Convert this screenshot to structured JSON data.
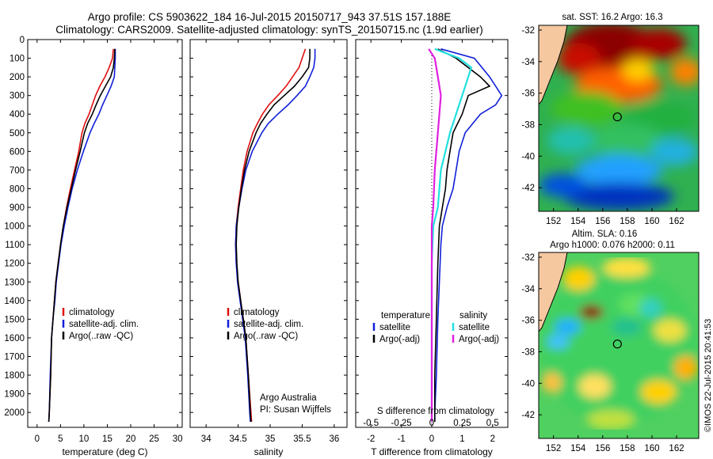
{
  "header": {
    "title_line1": "Argo profile: CS 5903622_184 16-Jul-2015 20150717_943 37.51S 157.188E",
    "title_line2": "Climatology: CARS2009. Satellite-adjusted climatology: synTS_20150715.nc (1.9d earlier)"
  },
  "colors": {
    "climatology": "#e01010",
    "satellite": "#1020d8",
    "argo": "#000000",
    "sat_salinity": "#20e0e0",
    "argo_salinity": "#e020e0",
    "land": "#f5c8a0"
  },
  "chart_data": [
    {
      "type": "line",
      "xlabel": "temperature (deg C)",
      "xlim": [
        -2,
        31
      ],
      "xticks": [
        0,
        5,
        10,
        15,
        20,
        25,
        30
      ],
      "ylim": [
        2080,
        0
      ],
      "yticks": [
        0,
        100,
        200,
        300,
        400,
        500,
        600,
        700,
        800,
        900,
        1000,
        1100,
        1200,
        1300,
        1400,
        1500,
        1600,
        1700,
        1800,
        1900,
        2000
      ],
      "legend": [
        "climatology",
        "satellite-adj. clim.",
        "Argo(..raw -QC)"
      ],
      "legend_position": "lower-right",
      "series": [
        {
          "name": "climatology",
          "color": "#e01010",
          "points": [
            [
              16.3,
              50
            ],
            [
              16.1,
              100
            ],
            [
              15.4,
              150
            ],
            [
              14.5,
              200
            ],
            [
              13.4,
              250
            ],
            [
              12.5,
              300
            ],
            [
              11.8,
              350
            ],
            [
              11.1,
              400
            ],
            [
              10.2,
              450
            ],
            [
              9.6,
              500
            ],
            [
              8.9,
              600
            ],
            [
              8.0,
              700
            ],
            [
              7.1,
              800
            ],
            [
              6.3,
              900
            ],
            [
              5.6,
              1000
            ],
            [
              5.0,
              1100
            ],
            [
              4.5,
              1200
            ],
            [
              4.0,
              1300
            ],
            [
              3.7,
              1400
            ],
            [
              3.4,
              1500
            ],
            [
              3.1,
              1600
            ],
            [
              2.9,
              1800
            ],
            [
              2.6,
              2000
            ],
            [
              2.5,
              2050
            ]
          ]
        },
        {
          "name": "satellite-adj. clim.",
          "color": "#1020d8",
          "points": [
            [
              16.7,
              50
            ],
            [
              16.7,
              100
            ],
            [
              16.6,
              150
            ],
            [
              16.5,
              200
            ],
            [
              15.8,
              250
            ],
            [
              14.9,
              300
            ],
            [
              14.0,
              350
            ],
            [
              13.2,
              400
            ],
            [
              12.2,
              450
            ],
            [
              11.3,
              500
            ],
            [
              9.9,
              600
            ],
            [
              8.6,
              700
            ],
            [
              7.5,
              800
            ],
            [
              6.6,
              900
            ],
            [
              5.8,
              1000
            ],
            [
              5.1,
              1100
            ],
            [
              4.6,
              1200
            ],
            [
              4.1,
              1300
            ],
            [
              3.8,
              1400
            ],
            [
              3.4,
              1500
            ],
            [
              3.1,
              1600
            ],
            [
              2.8,
              1800
            ],
            [
              2.6,
              2000
            ],
            [
              2.5,
              2050
            ]
          ]
        },
        {
          "name": "Argo(..raw -QC)",
          "color": "#000000",
          "points": [
            [
              16.6,
              50
            ],
            [
              16.5,
              100
            ],
            [
              16.3,
              150
            ],
            [
              15.7,
              200
            ],
            [
              14.6,
              250
            ],
            [
              13.5,
              300
            ],
            [
              12.6,
              350
            ],
            [
              11.8,
              400
            ],
            [
              10.8,
              450
            ],
            [
              10.1,
              500
            ],
            [
              9.2,
              600
            ],
            [
              8.2,
              700
            ],
            [
              7.3,
              800
            ],
            [
              6.4,
              900
            ],
            [
              5.6,
              1000
            ],
            [
              5.0,
              1100
            ],
            [
              4.5,
              1200
            ],
            [
              4.0,
              1300
            ],
            [
              3.7,
              1400
            ],
            [
              3.4,
              1500
            ],
            [
              3.1,
              1600
            ],
            [
              2.9,
              1800
            ],
            [
              2.6,
              2000
            ],
            [
              2.5,
              2050
            ]
          ]
        }
      ]
    },
    {
      "type": "line",
      "xlabel": "salinity",
      "xlim": [
        33.75,
        36.2
      ],
      "xticks": [
        34,
        34.5,
        35,
        35.5,
        36
      ],
      "xtick_labels": [
        "34",
        "34.5",
        "35",
        "35.5",
        "36"
      ],
      "ylim": [
        2080,
        0
      ],
      "legend": [
        "climatology",
        "satellite-adj. clim.",
        "Argo(..raw -QC)"
      ],
      "legend_position": "lower-right",
      "annotation": [
        "Argo Australia",
        "PI: Susan Wijffels"
      ],
      "series": [
        {
          "name": "climatology",
          "color": "#e01010",
          "points": [
            [
              35.55,
              50
            ],
            [
              35.5,
              100
            ],
            [
              35.45,
              150
            ],
            [
              35.35,
              200
            ],
            [
              35.25,
              250
            ],
            [
              35.12,
              300
            ],
            [
              34.98,
              350
            ],
            [
              34.88,
              400
            ],
            [
              34.8,
              450
            ],
            [
              34.73,
              500
            ],
            [
              34.64,
              600
            ],
            [
              34.58,
              700
            ],
            [
              34.54,
              800
            ],
            [
              34.5,
              900
            ],
            [
              34.47,
              1000
            ],
            [
              34.46,
              1100
            ],
            [
              34.47,
              1200
            ],
            [
              34.5,
              1300
            ],
            [
              34.54,
              1400
            ],
            [
              34.58,
              1500
            ],
            [
              34.62,
              1600
            ],
            [
              34.66,
              1800
            ],
            [
              34.7,
              2000
            ],
            [
              34.71,
              2050
            ]
          ]
        },
        {
          "name": "satellite-adj. clim.",
          "color": "#1020d8",
          "points": [
            [
              35.7,
              50
            ],
            [
              35.7,
              100
            ],
            [
              35.68,
              150
            ],
            [
              35.62,
              200
            ],
            [
              35.55,
              250
            ],
            [
              35.42,
              300
            ],
            [
              35.28,
              350
            ],
            [
              35.12,
              400
            ],
            [
              34.97,
              450
            ],
            [
              34.87,
              500
            ],
            [
              34.72,
              600
            ],
            [
              34.62,
              700
            ],
            [
              34.56,
              800
            ],
            [
              34.51,
              900
            ],
            [
              34.47,
              1000
            ],
            [
              34.46,
              1100
            ],
            [
              34.47,
              1200
            ],
            [
              34.49,
              1300
            ],
            [
              34.53,
              1400
            ],
            [
              34.57,
              1500
            ],
            [
              34.61,
              1600
            ],
            [
              34.65,
              1800
            ],
            [
              34.68,
              2000
            ],
            [
              34.69,
              2050
            ]
          ]
        },
        {
          "name": "Argo(..raw -QC)",
          "color": "#000000",
          "points": [
            [
              35.62,
              50
            ],
            [
              35.62,
              100
            ],
            [
              35.6,
              150
            ],
            [
              35.5,
              200
            ],
            [
              35.38,
              250
            ],
            [
              35.22,
              300
            ],
            [
              35.06,
              350
            ],
            [
              34.95,
              400
            ],
            [
              34.85,
              450
            ],
            [
              34.78,
              500
            ],
            [
              34.67,
              600
            ],
            [
              34.6,
              700
            ],
            [
              34.55,
              800
            ],
            [
              34.51,
              900
            ],
            [
              34.48,
              1000
            ],
            [
              34.47,
              1100
            ],
            [
              34.48,
              1200
            ],
            [
              34.5,
              1300
            ],
            [
              34.54,
              1400
            ],
            [
              34.58,
              1500
            ],
            [
              34.62,
              1600
            ],
            [
              34.66,
              1800
            ],
            [
              34.69,
              2000
            ],
            [
              34.7,
              2050
            ]
          ]
        }
      ]
    },
    {
      "type": "line",
      "xlabel": "T difference from climatology",
      "xlabel_top": "S difference from climatology",
      "xlim": [
        -2.5,
        2.5
      ],
      "xticks": [
        -2,
        -1,
        0,
        1,
        2
      ],
      "xticks_top": [
        -0.5,
        -0.25,
        0,
        0.25,
        0.5
      ],
      "ylim": [
        2080,
        0
      ],
      "legend_temperature_title": "temperature",
      "legend_salinity_title": "salinity",
      "legend": [
        "satellite",
        "Argo(-adj)",
        "satellite",
        "Argo(-adj)"
      ],
      "legend_position": "lower-right",
      "series": [
        {
          "name": "satellite",
          "color": "#1020d8",
          "points": [
            [
              0.3,
              50
            ],
            [
              1.4,
              100
            ],
            [
              1.9,
              200
            ],
            [
              2.3,
              300
            ],
            [
              2.1,
              350
            ],
            [
              1.6,
              400
            ],
            [
              1.1,
              500
            ],
            [
              0.9,
              600
            ],
            [
              0.7,
              800
            ],
            [
              0.5,
              900
            ],
            [
              0.35,
              1000
            ],
            [
              0.3,
              1100
            ],
            [
              0.25,
              1300
            ],
            [
              0.2,
              1500
            ],
            [
              0.15,
              1800
            ],
            [
              0.1,
              2000
            ],
            [
              0.1,
              2050
            ]
          ]
        },
        {
          "name": "Argo(-adj)",
          "color": "#000000",
          "points": [
            [
              0.2,
              50
            ],
            [
              0.8,
              100
            ],
            [
              1.6,
              200
            ],
            [
              1.9,
              250
            ],
            [
              1.2,
              300
            ],
            [
              1.0,
              400
            ],
            [
              0.7,
              500
            ],
            [
              0.6,
              600
            ],
            [
              0.5,
              700
            ],
            [
              0.45,
              800
            ],
            [
              0.35,
              900
            ],
            [
              0.25,
              1000
            ],
            [
              0.2,
              1200
            ],
            [
              0.15,
              1500
            ],
            [
              0.1,
              1800
            ],
            [
              0.1,
              2000
            ],
            [
              0.1,
              2050
            ]
          ]
        },
        {
          "name": "satellite",
          "color": "#20e0e0",
          "points": [
            [
              0.1,
              50
            ],
            [
              0.9,
              100
            ],
            [
              1.3,
              150
            ],
            [
              1.2,
              200
            ],
            [
              1.0,
              300
            ],
            [
              0.8,
              400
            ],
            [
              0.6,
              500
            ],
            [
              0.3,
              700
            ],
            [
              0.2,
              900
            ],
            [
              0.05,
              1000
            ],
            [
              0.0,
              1200
            ],
            [
              0.0,
              1400
            ],
            [
              0.0,
              1700
            ],
            [
              0.0,
              2050
            ]
          ]
        },
        {
          "name": "Argo(-adj)",
          "color": "#e020e0",
          "points": [
            [
              -0.1,
              50
            ],
            [
              0.1,
              100
            ],
            [
              0.2,
              200
            ],
            [
              0.3,
              300
            ],
            [
              0.25,
              400
            ],
            [
              0.2,
              500
            ],
            [
              0.1,
              700
            ],
            [
              0.05,
              900
            ],
            [
              0.0,
              1000
            ],
            [
              0.0,
              1300
            ],
            [
              0.0,
              2050
            ]
          ]
        }
      ]
    },
    {
      "type": "heatmap",
      "title": "sat. SST: 16.2  Argo: 16.3",
      "xticks": [
        152,
        154,
        156,
        158,
        160,
        162
      ],
      "yticks": [
        -32,
        -34,
        -36,
        -38,
        -40,
        -42
      ],
      "xlim": [
        150.8,
        163.8
      ],
      "ylim": [
        -43.5,
        -31.7
      ],
      "marker": [
        157.19,
        -37.51
      ]
    },
    {
      "type": "heatmap",
      "title": [
        "Altim. SLA: 0.16",
        "Argo h1000: 0.076  h2000: 0.11"
      ],
      "xticks": [
        152,
        154,
        156,
        158,
        160,
        162
      ],
      "yticks": [
        -32,
        -34,
        -36,
        -38,
        -40,
        -42
      ],
      "xlim": [
        150.8,
        163.8
      ],
      "ylim": [
        -43.5,
        -31.7
      ],
      "marker": [
        157.19,
        -37.51
      ]
    }
  ],
  "credit": "©IMOS 22-Jul-2015 20:41:53"
}
